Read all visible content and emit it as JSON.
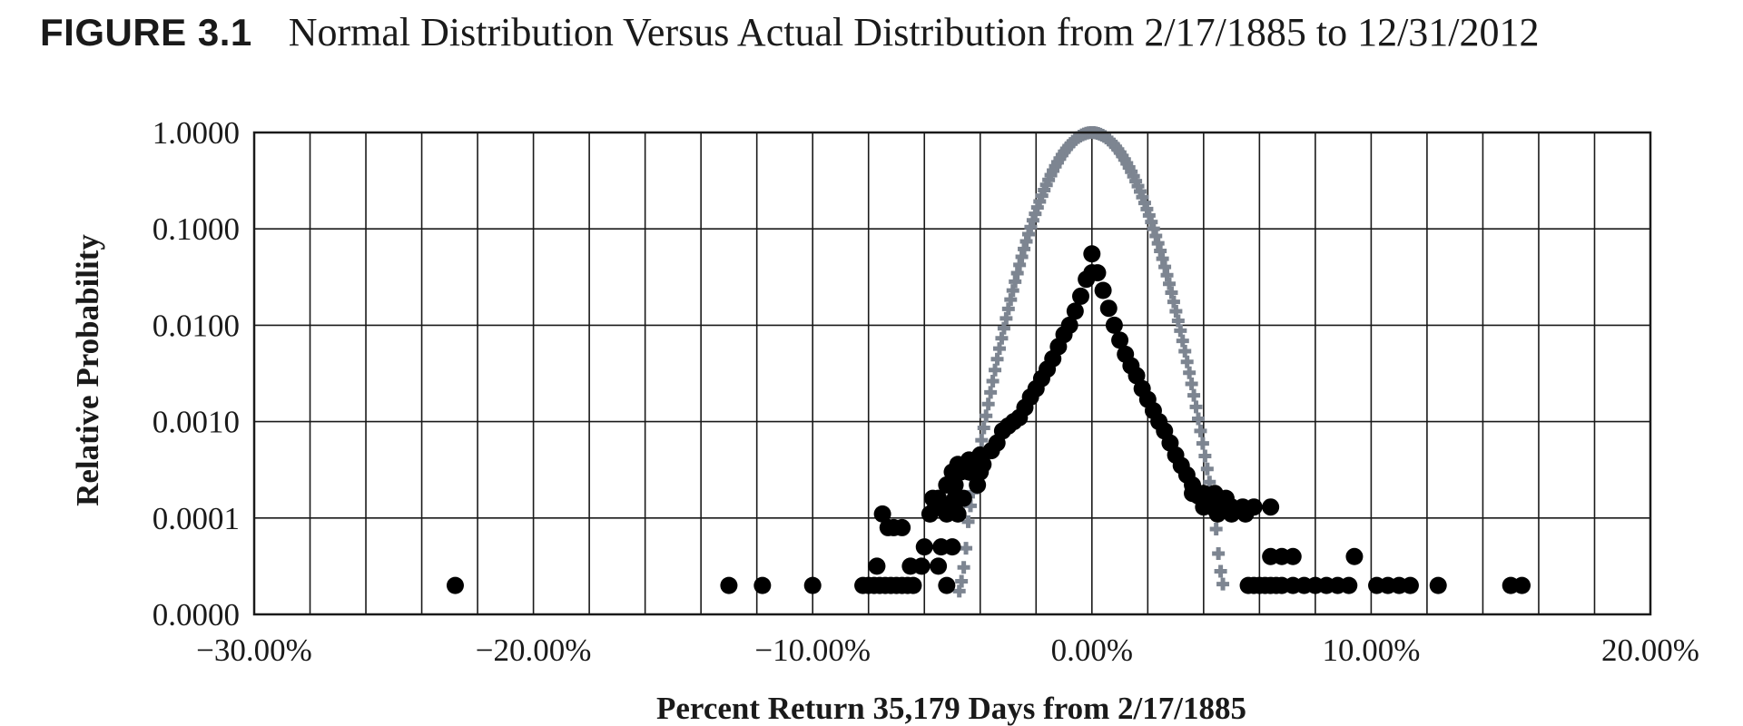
{
  "figure": {
    "label": "FIGURE 3.1",
    "caption": "Normal Distribution Versus Actual Distribution from 2/17/1885 to 12/31/2012"
  },
  "chart_data": {
    "type": "scatter",
    "title": "Normal Distribution Versus Actual Distribution from 2/17/1885 to 12/31/2012",
    "xlabel": "Percent Return 35,179 Days from 2/17/1885",
    "ylabel": "Relative Probability",
    "xlim": [
      -0.3,
      0.2
    ],
    "y_scale": "log",
    "y_ticks": [
      0.0,
      0.0001,
      0.001,
      0.01,
      0.1,
      1.0
    ],
    "y_tick_labels": [
      "0.0000",
      "0.0001",
      "0.0010",
      "0.0100",
      "0.1000",
      "1.0000"
    ],
    "x_ticks": [
      -0.3,
      -0.2,
      -0.1,
      0.0,
      0.1,
      0.2
    ],
    "x_tick_labels": [
      "−30.00%",
      "−20.00%",
      "−10.00%",
      "0.00%",
      "10.00%",
      "20.00%"
    ],
    "grid": true,
    "x_grid_step": 0.02,
    "colors": {
      "actual": "#000000",
      "normal": "#7d8591",
      "frame": "#1a1a1a"
    },
    "series": [
      {
        "key": "actual",
        "marker": "circle",
        "points": [
          [
            -0.228,
            3e-05
          ],
          [
            -0.13,
            3e-05
          ],
          [
            -0.118,
            3e-05
          ],
          [
            -0.1,
            3e-05
          ],
          [
            -0.082,
            3e-05
          ],
          [
            -0.08,
            3e-05
          ],
          [
            -0.078,
            3e-05
          ],
          [
            -0.076,
            3e-05
          ],
          [
            -0.074,
            3e-05
          ],
          [
            -0.072,
            3e-05
          ],
          [
            -0.07,
            3e-05
          ],
          [
            -0.068,
            3e-05
          ],
          [
            -0.066,
            3e-05
          ],
          [
            -0.064,
            3e-05
          ],
          [
            -0.052,
            3e-05
          ],
          [
            -0.077,
            5e-05
          ],
          [
            -0.065,
            5e-05
          ],
          [
            -0.061,
            5e-05
          ],
          [
            -0.055,
            5e-05
          ],
          [
            -0.06,
            7e-05
          ],
          [
            -0.054,
            7e-05
          ],
          [
            -0.05,
            7e-05
          ],
          [
            -0.073,
            9e-05
          ],
          [
            -0.071,
            9e-05
          ],
          [
            -0.068,
            9e-05
          ],
          [
            -0.075,
            0.00011
          ],
          [
            -0.058,
            0.00011
          ],
          [
            -0.052,
            0.00011
          ],
          [
            -0.048,
            0.00011
          ],
          [
            -0.056,
            0.00013
          ],
          [
            -0.053,
            0.00013
          ],
          [
            -0.05,
            0.00013
          ],
          [
            -0.057,
            0.00016
          ],
          [
            -0.055,
            0.00016
          ],
          [
            -0.049,
            0.00016
          ],
          [
            -0.046,
            0.00016
          ],
          [
            -0.052,
            0.00022
          ],
          [
            -0.049,
            0.00022
          ],
          [
            -0.041,
            0.00022
          ],
          [
            -0.05,
            0.0003
          ],
          [
            -0.047,
            0.0003
          ],
          [
            -0.044,
            0.0003
          ],
          [
            -0.04,
            0.0003
          ],
          [
            -0.048,
            0.00036
          ],
          [
            -0.044,
            0.00036
          ],
          [
            -0.039,
            0.00036
          ],
          [
            -0.044,
            0.0004
          ],
          [
            -0.04,
            0.00045
          ],
          [
            -0.036,
            0.0005
          ],
          [
            -0.034,
            0.0006
          ],
          [
            -0.032,
            0.0008
          ],
          [
            -0.03,
            0.0009
          ],
          [
            -0.028,
            0.001
          ],
          [
            -0.026,
            0.0011
          ],
          [
            -0.024,
            0.0014
          ],
          [
            -0.022,
            0.0018
          ],
          [
            -0.02,
            0.0022
          ],
          [
            -0.018,
            0.0028
          ],
          [
            -0.016,
            0.0035
          ],
          [
            -0.014,
            0.0045
          ],
          [
            -0.012,
            0.006
          ],
          [
            -0.01,
            0.008
          ],
          [
            -0.008,
            0.01
          ],
          [
            -0.006,
            0.014
          ],
          [
            -0.004,
            0.02
          ],
          [
            -0.002,
            0.03
          ],
          [
            0.0,
            0.055
          ],
          [
            0.0,
            0.035
          ],
          [
            0.002,
            0.035
          ],
          [
            0.004,
            0.023
          ],
          [
            0.006,
            0.015
          ],
          [
            0.008,
            0.01
          ],
          [
            0.01,
            0.007
          ],
          [
            0.012,
            0.005
          ],
          [
            0.014,
            0.0038
          ],
          [
            0.016,
            0.003
          ],
          [
            0.018,
            0.0022
          ],
          [
            0.02,
            0.0017
          ],
          [
            0.022,
            0.0013
          ],
          [
            0.024,
            0.001
          ],
          [
            0.026,
            0.0008
          ],
          [
            0.028,
            0.0006
          ],
          [
            0.03,
            0.00045
          ],
          [
            0.032,
            0.00035
          ],
          [
            0.034,
            0.00028
          ],
          [
            0.036,
            0.00022
          ],
          [
            0.038,
            0.00017
          ],
          [
            0.04,
            0.00015
          ],
          [
            0.036,
            0.00018
          ],
          [
            0.04,
            0.00018
          ],
          [
            0.044,
            0.00018
          ],
          [
            0.048,
            0.00016
          ],
          [
            0.04,
            0.00013
          ],
          [
            0.043,
            0.00013
          ],
          [
            0.046,
            0.00013
          ],
          [
            0.05,
            0.00013
          ],
          [
            0.054,
            0.00013
          ],
          [
            0.058,
            0.00013
          ],
          [
            0.064,
            0.00013
          ],
          [
            0.045,
            0.00011
          ],
          [
            0.05,
            0.00011
          ],
          [
            0.055,
            0.00011
          ],
          [
            0.064,
            6e-05
          ],
          [
            0.068,
            6e-05
          ],
          [
            0.072,
            6e-05
          ],
          [
            0.094,
            6e-05
          ],
          [
            0.056,
            3e-05
          ],
          [
            0.058,
            3e-05
          ],
          [
            0.06,
            3e-05
          ],
          [
            0.062,
            3e-05
          ],
          [
            0.064,
            3e-05
          ],
          [
            0.066,
            3e-05
          ],
          [
            0.068,
            3e-05
          ],
          [
            0.072,
            3e-05
          ],
          [
            0.076,
            3e-05
          ],
          [
            0.08,
            3e-05
          ],
          [
            0.084,
            3e-05
          ],
          [
            0.088,
            3e-05
          ],
          [
            0.092,
            3e-05
          ],
          [
            0.102,
            3e-05
          ],
          [
            0.106,
            3e-05
          ],
          [
            0.11,
            3e-05
          ],
          [
            0.114,
            3e-05
          ],
          [
            0.124,
            3e-05
          ],
          [
            0.15,
            3e-05
          ],
          [
            0.154,
            3e-05
          ]
        ]
      },
      {
        "key": "normal",
        "marker": "plus",
        "mean": 0.0,
        "std": 0.0103,
        "x_range": [
          -0.0475,
          0.0475
        ],
        "x_step": 0.0008,
        "peak": 1.0,
        "floor": 1e-06
      }
    ]
  }
}
